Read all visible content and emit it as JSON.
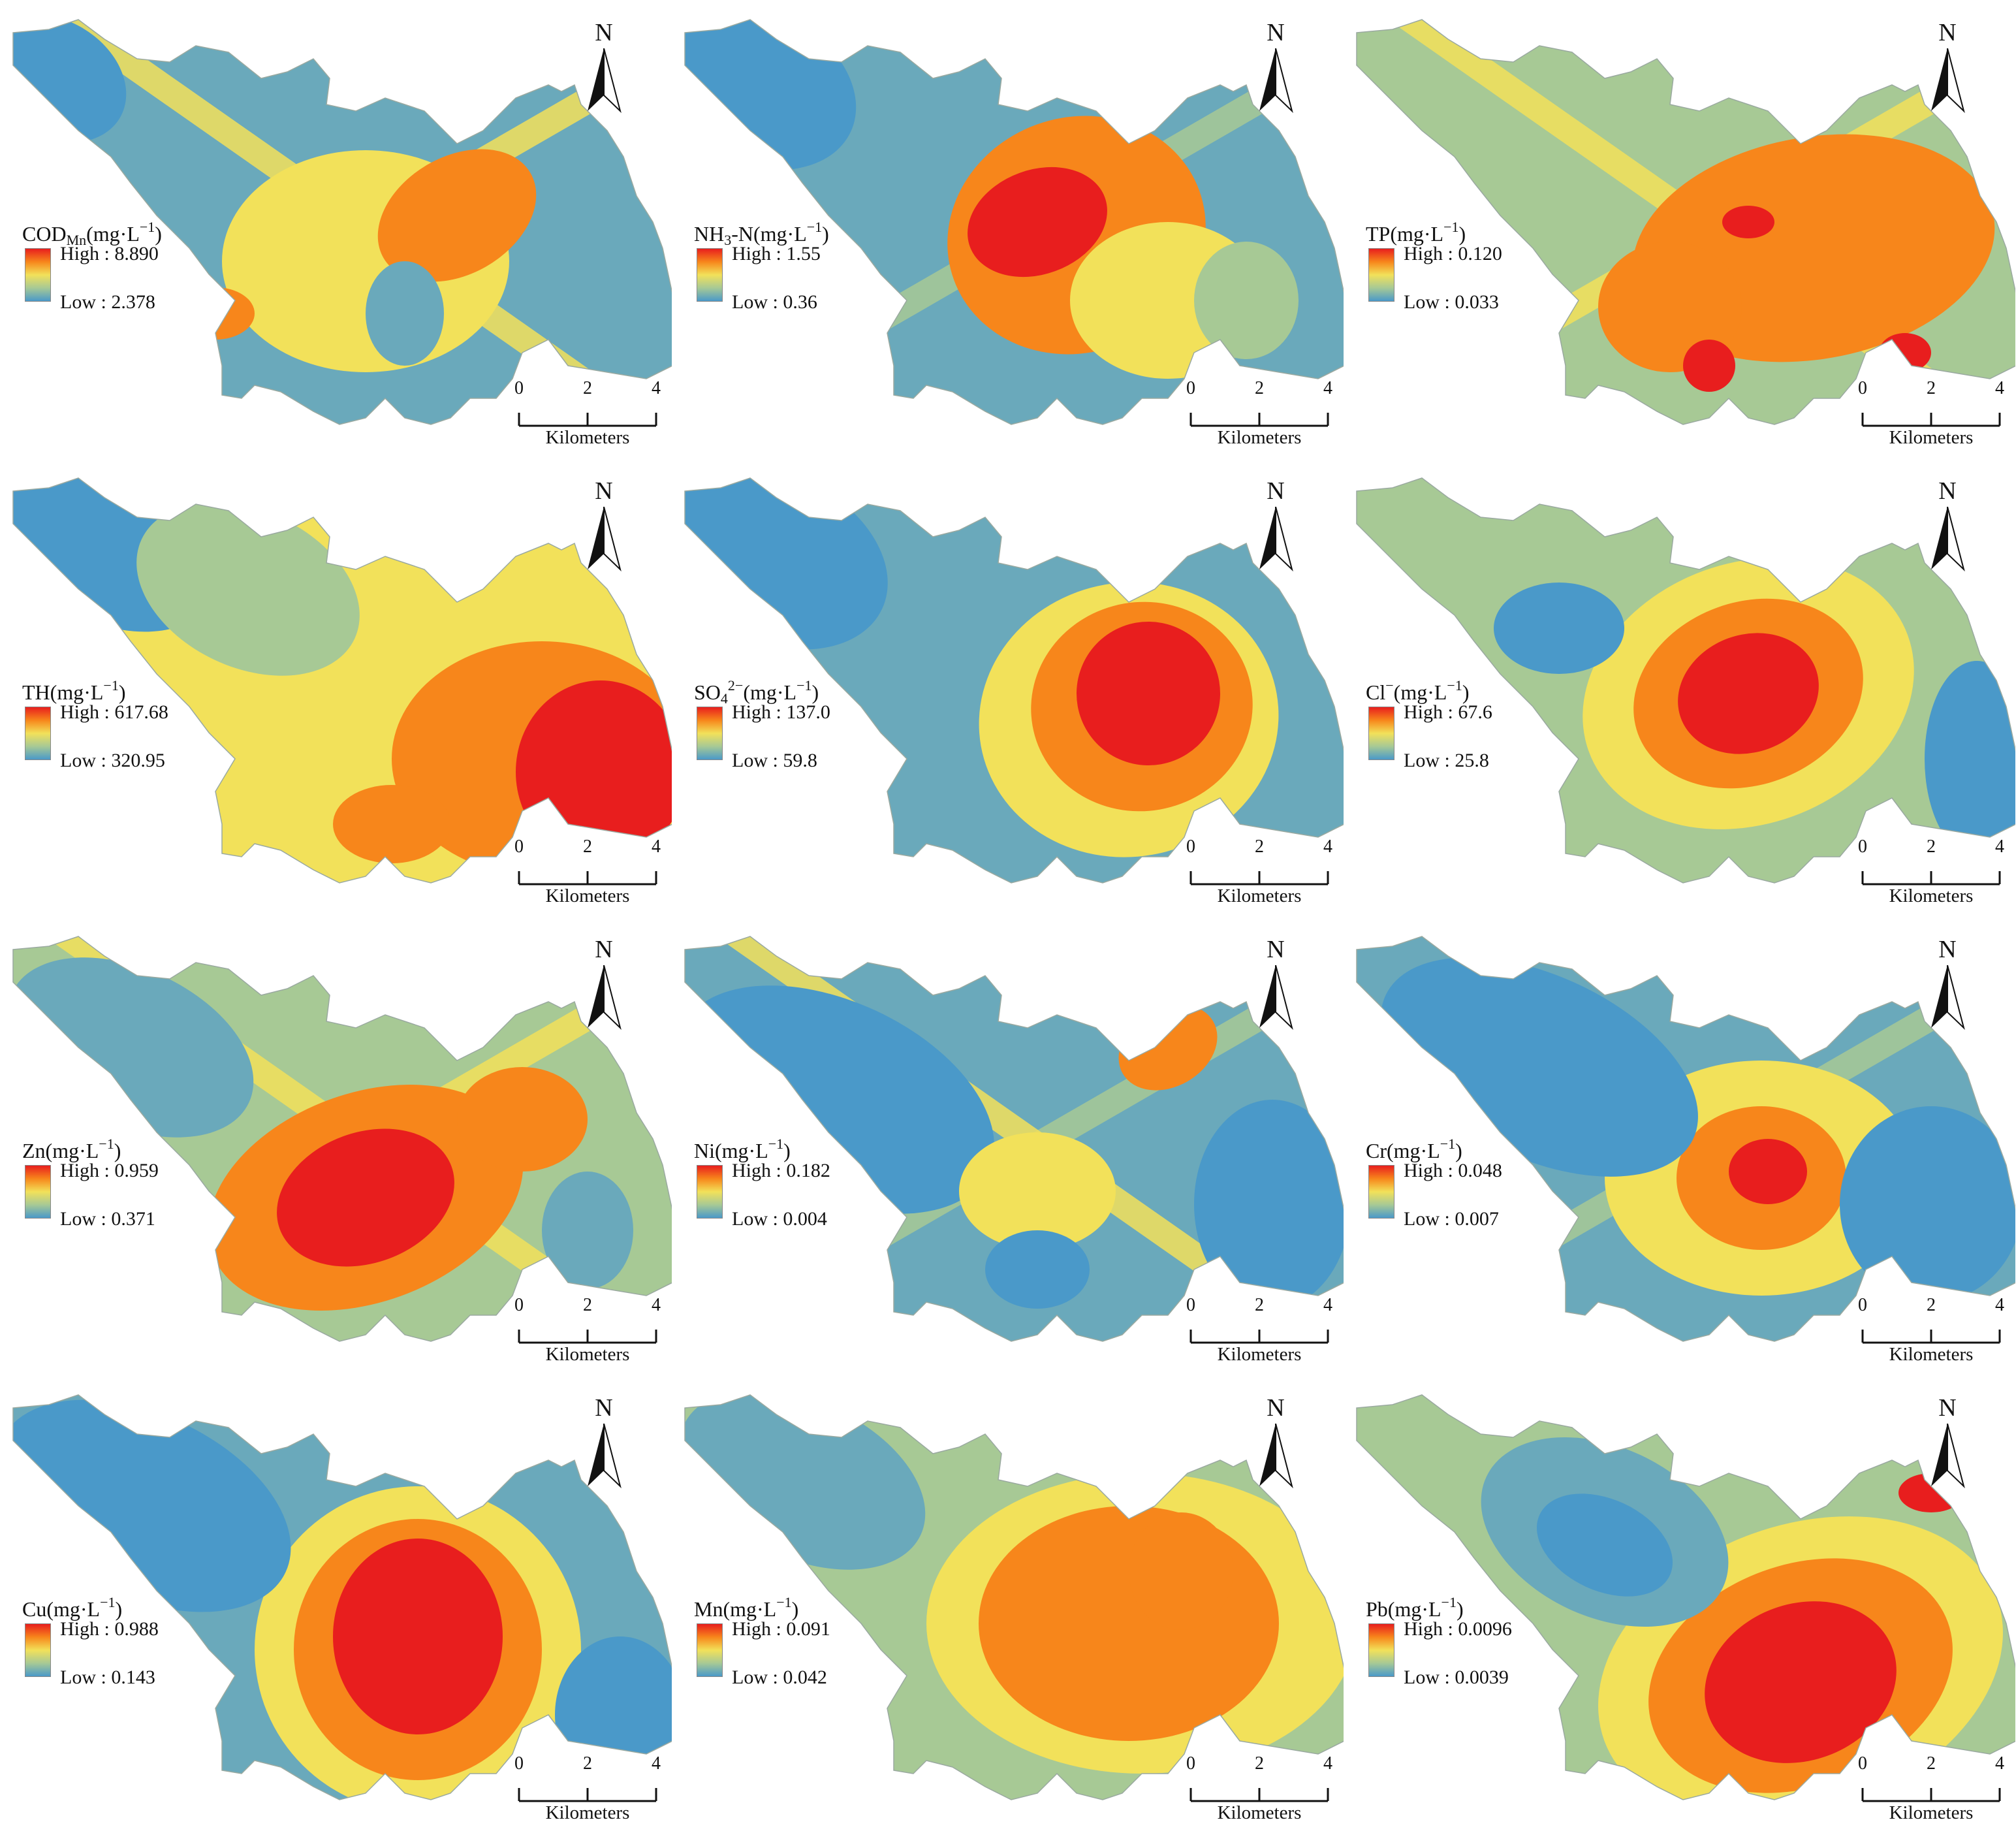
{
  "panels": [
    {
      "id": "codmn",
      "title_main": "COD",
      "title_sub": "Mn",
      "title_sup": "",
      "title_after": "",
      "title_unit": "(mg·L",
      "unit_sup": "−1",
      "unit_close": ")",
      "high": "High : 8.890",
      "low": "Low : 2.378"
    },
    {
      "id": "nh3n",
      "title_main": "NH",
      "title_sub": "3",
      "title_sup": "",
      "title_after": "-N",
      "title_unit": "(mg·L",
      "unit_sup": "−1",
      "unit_close": ")",
      "high": "High : 1.55",
      "low": "Low : 0.36"
    },
    {
      "id": "tp",
      "title_main": "TP",
      "title_sub": "",
      "title_sup": "",
      "title_after": "",
      "title_unit": "(mg·L",
      "unit_sup": "−1",
      "unit_close": ")",
      "high": "High : 0.120",
      "low": "Low : 0.033"
    },
    {
      "id": "th",
      "title_main": "TH",
      "title_sub": "",
      "title_sup": "",
      "title_after": "",
      "title_unit": "(mg·L",
      "unit_sup": "−1",
      "unit_close": ")",
      "high": "High : 617.68",
      "low": "Low : 320.95"
    },
    {
      "id": "so4",
      "title_main": "SO",
      "title_sub": "4",
      "title_sup": "2−",
      "title_after": "",
      "title_unit": "(mg·L",
      "unit_sup": "−1",
      "unit_close": ")",
      "high": "High : 137.0",
      "low": "Low : 59.8"
    },
    {
      "id": "cl",
      "title_main": "Cl",
      "title_sub": "",
      "title_sup": "−",
      "title_after": "",
      "title_unit": "(mg·L",
      "unit_sup": "−1",
      "unit_close": ")",
      "high": "High : 67.6",
      "low": "Low : 25.8"
    },
    {
      "id": "zn",
      "title_main": "Zn",
      "title_sub": "",
      "title_sup": "",
      "title_after": "",
      "title_unit": "(mg·L",
      "unit_sup": "−1",
      "unit_close": ")",
      "high": "High : 0.959",
      "low": "Low : 0.371"
    },
    {
      "id": "ni",
      "title_main": "Ni",
      "title_sub": "",
      "title_sup": "",
      "title_after": "",
      "title_unit": "(mg·L",
      "unit_sup": "−1",
      "unit_close": ")",
      "high": "High : 0.182",
      "low": "Low : 0.004"
    },
    {
      "id": "cr",
      "title_main": "Cr",
      "title_sub": "",
      "title_sup": "",
      "title_after": "",
      "title_unit": "(mg·L",
      "unit_sup": "−1",
      "unit_close": ")",
      "high": "High : 0.048",
      "low": "Low : 0.007"
    },
    {
      "id": "cu",
      "title_main": "Cu",
      "title_sub": "",
      "title_sup": "",
      "title_after": "",
      "title_unit": "(mg·L",
      "unit_sup": "−1",
      "unit_close": ")",
      "high": "High : 0.988",
      "low": "Low : 0.143"
    },
    {
      "id": "mn",
      "title_main": "Mn",
      "title_sub": "",
      "title_sup": "",
      "title_after": "",
      "title_unit": "(mg·L",
      "unit_sup": "−1",
      "unit_close": ")",
      "high": "High : 0.091",
      "low": "Low : 0.042"
    },
    {
      "id": "pb",
      "title_main": "Pb",
      "title_sub": "",
      "title_sup": "",
      "title_after": "",
      "title_unit": "(mg·L",
      "unit_sup": "−1",
      "unit_close": ")",
      "high": "High : 0.0096",
      "low": "Low : 0.0039"
    }
  ],
  "north_label": "N",
  "scale": {
    "ticks": [
      "0",
      "2",
      "4"
    ],
    "unit": "Kilometers"
  },
  "colors": {
    "high": "#e81e1e",
    "orange": "#f7861b",
    "yellow": "#f2e15a",
    "green": "#a7c995",
    "blue": "#4a99c9"
  }
}
